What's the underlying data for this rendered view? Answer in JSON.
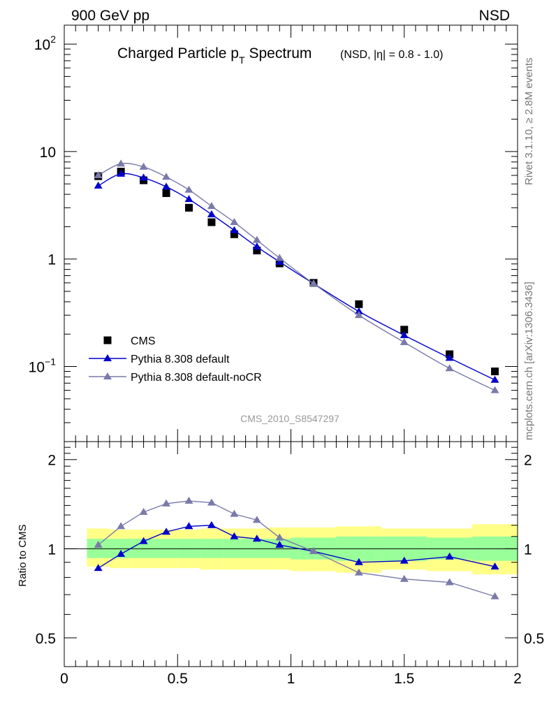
{
  "header": {
    "left_label": "900 GeV pp",
    "right_label": "NSD"
  },
  "side_labels": {
    "rivet": "Rivet 3.1.10, ≥ 2.8M events",
    "mcplots": "mcplots.cern.ch [arXiv:1306.3436]"
  },
  "chart_data": [
    {
      "type": "scatter",
      "title": "Charged Particle p",
      "title_subscript": "T",
      "title_suffix": "Spectrum",
      "subtitle": "(NSD, |η| = 0.8 - 1.0)",
      "watermark": "CMS_2010_S8547297",
      "xlim": [
        0,
        2
      ],
      "ylim": [
        0.02,
        150
      ],
      "yscale": "log",
      "ytick_labels": [
        {
          "value": 100,
          "base": "10",
          "exp": "2"
        },
        {
          "value": 10,
          "base": "10",
          "exp": ""
        },
        {
          "value": 1,
          "base": "1",
          "exp": ""
        },
        {
          "value": 0.1,
          "base": "10",
          "exp": "−1"
        }
      ],
      "legend_position": "bottom-left",
      "series": [
        {
          "name": "CMS",
          "color": "#000000",
          "marker": "square",
          "x": [
            0.15,
            0.25,
            0.35,
            0.45,
            0.55,
            0.65,
            0.75,
            0.85,
            0.95,
            1.1,
            1.3,
            1.5,
            1.7,
            1.9
          ],
          "y": [
            5.9,
            6.5,
            5.4,
            4.1,
            3.0,
            2.2,
            1.7,
            1.2,
            0.91,
            0.6,
            0.38,
            0.22,
            0.13,
            0.09
          ]
        },
        {
          "name": "Pythia 8.308 default",
          "color": "#0000cc",
          "marker": "triangle",
          "x": [
            0.15,
            0.25,
            0.35,
            0.45,
            0.55,
            0.65,
            0.75,
            0.85,
            0.95,
            1.1,
            1.3,
            1.5,
            1.7,
            1.9
          ],
          "y": [
            4.8,
            6.2,
            5.7,
            4.7,
            3.6,
            2.6,
            1.85,
            1.3,
            0.94,
            0.59,
            0.325,
            0.195,
            0.12,
            0.075
          ]
        },
        {
          "name": "Pythia 8.308 default-noCR",
          "color": "#7a7aaa",
          "marker": "triangle",
          "x": [
            0.15,
            0.25,
            0.35,
            0.45,
            0.55,
            0.65,
            0.75,
            0.85,
            0.95,
            1.1,
            1.3,
            1.5,
            1.7,
            1.9
          ],
          "y": [
            6.0,
            7.7,
            7.2,
            5.8,
            4.4,
            3.1,
            2.2,
            1.5,
            1.02,
            0.59,
            0.3,
            0.168,
            0.096,
            0.06
          ]
        }
      ]
    },
    {
      "type": "line",
      "ylabel": "Ratio to CMS",
      "xlim": [
        0,
        2
      ],
      "ylim": [
        0.4,
        2.3
      ],
      "yscale": "log",
      "ytick_labels": [
        {
          "value": 2,
          "label": "2"
        },
        {
          "value": 1,
          "label": "1"
        },
        {
          "value": 0.5,
          "label": "0.5"
        }
      ],
      "xtick_labels": [
        {
          "value": 0,
          "label": "0"
        },
        {
          "value": 0.5,
          "label": "0.5"
        },
        {
          "value": 1,
          "label": "1"
        },
        {
          "value": 1.5,
          "label": "1.5"
        },
        {
          "value": 2,
          "label": "2"
        }
      ],
      "reference_line": 1,
      "uncertainty_bands": {
        "bins": [
          [
            0.1,
            0.2
          ],
          [
            0.2,
            0.3
          ],
          [
            0.3,
            0.4
          ],
          [
            0.4,
            0.5
          ],
          [
            0.5,
            0.6
          ],
          [
            0.6,
            0.7
          ],
          [
            0.7,
            0.8
          ],
          [
            0.8,
            0.9
          ],
          [
            0.9,
            1.0
          ],
          [
            1.0,
            1.2
          ],
          [
            1.2,
            1.4
          ],
          [
            1.4,
            1.6
          ],
          [
            1.6,
            1.8
          ],
          [
            1.8,
            2.0
          ]
        ],
        "stat_low": [
          0.93,
          0.93,
          0.93,
          0.93,
          0.93,
          0.93,
          0.93,
          0.93,
          0.93,
          0.92,
          0.91,
          0.91,
          0.92,
          0.91
        ],
        "stat_high": [
          1.08,
          1.08,
          1.08,
          1.08,
          1.08,
          1.08,
          1.08,
          1.08,
          1.08,
          1.09,
          1.1,
          1.1,
          1.09,
          1.1
        ],
        "total_low": [
          0.87,
          0.86,
          0.86,
          0.86,
          0.86,
          0.85,
          0.85,
          0.85,
          0.85,
          0.84,
          0.83,
          0.85,
          0.84,
          0.82
        ],
        "total_high": [
          1.17,
          1.16,
          1.16,
          1.16,
          1.16,
          1.17,
          1.17,
          1.17,
          1.18,
          1.18,
          1.19,
          1.17,
          1.17,
          1.21
        ],
        "stat_color": "#99ff99",
        "total_color": "#ffff88"
      },
      "series": [
        {
          "name": "Pythia 8.308 default",
          "color": "#0000cc",
          "x": [
            0.15,
            0.25,
            0.35,
            0.45,
            0.55,
            0.65,
            0.75,
            0.85,
            0.95,
            1.1,
            1.3,
            1.5,
            1.7,
            1.9
          ],
          "y": [
            0.86,
            0.96,
            1.06,
            1.14,
            1.19,
            1.2,
            1.1,
            1.08,
            1.03,
            0.98,
            0.9,
            0.91,
            0.94,
            0.87
          ]
        },
        {
          "name": "Pythia 8.308 default-noCR",
          "color": "#7a7aaa",
          "x": [
            0.15,
            0.25,
            0.35,
            0.45,
            0.55,
            0.65,
            0.75,
            0.85,
            0.95,
            1.1,
            1.3,
            1.5,
            1.7,
            1.9
          ],
          "y": [
            1.03,
            1.19,
            1.33,
            1.42,
            1.45,
            1.43,
            1.31,
            1.25,
            1.09,
            0.98,
            0.83,
            0.79,
            0.77,
            0.69
          ]
        }
      ]
    }
  ]
}
